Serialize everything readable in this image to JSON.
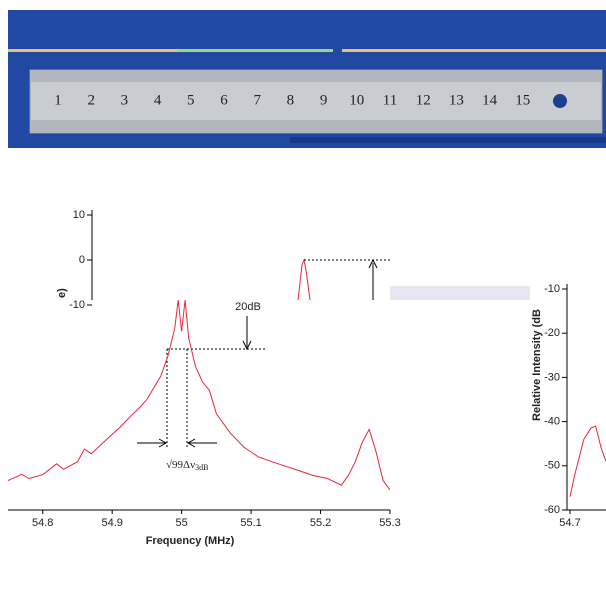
{
  "photo": {
    "ruler_labels": [
      "1",
      "2",
      "3",
      "4",
      "5",
      "6",
      "7",
      "8",
      "9",
      "10",
      "11",
      "12",
      "13",
      "14",
      "15"
    ]
  },
  "chart_data": [
    {
      "type": "line",
      "xlabel": "Frequency (MHz)",
      "color": "#e8283a",
      "xlim": [
        54.75,
        55.3
      ],
      "xticks": [
        54.8,
        54.9,
        55.0,
        55.1,
        55.2,
        55.3
      ],
      "ylim": [
        -62.5,
        -12.5
      ],
      "annotations": [
        "20dB",
        "√99Δν",
        "3dB"
      ],
      "x": [
        54.75,
        54.77,
        54.78,
        54.8,
        54.82,
        54.83,
        54.85,
        54.86,
        54.87,
        54.89,
        54.9,
        54.91,
        54.93,
        54.94,
        54.95,
        54.97,
        54.98,
        54.99,
        54.995,
        55.0,
        55.005,
        55.01,
        55.02,
        55.03,
        55.04,
        55.05,
        55.07,
        55.09,
        55.11,
        55.13,
        55.15,
        55.17,
        55.19,
        55.21,
        55.23,
        55.24,
        55.25,
        55.26,
        55.27,
        55.28,
        55.29,
        55.3
      ],
      "values": [
        -55.5,
        -54,
        -55,
        -54.1,
        -51.5,
        -52.8,
        -51,
        -48,
        -49.1,
        -46,
        -44.5,
        -43,
        -39.6,
        -38,
        -36.2,
        -30.6,
        -26,
        -19.3,
        -12.5,
        -20,
        -12.5,
        -21.5,
        -28.3,
        -32,
        -34,
        -39.6,
        -44.2,
        -47.6,
        -49.8,
        -51,
        -52.1,
        -53.2,
        -54.3,
        -55,
        -56.6,
        -54.3,
        -51,
        -46.4,
        -43.3,
        -48.7,
        -55.5,
        -57.7
      ]
    },
    {
      "type": "line",
      "ylabel": "Relative Intensity (dB",
      "color": "#e8283a",
      "xlim": [
        54.7,
        54.752
      ],
      "xticks": [
        54.7
      ],
      "ylim": [
        -60,
        -10
      ],
      "yticks": [
        -10,
        -20,
        -30,
        -40,
        -50,
        -60
      ],
      "x": [
        54.7,
        54.707,
        54.715,
        54.72,
        54.73,
        54.737,
        54.745,
        54.752
      ],
      "values": [
        -57,
        -52,
        -47,
        -44,
        -41.5,
        -41,
        -46,
        -49
      ]
    },
    {
      "type": "axis",
      "ylim": [
        -10,
        10
      ],
      "yticks": [
        10,
        0,
        -10
      ]
    }
  ]
}
